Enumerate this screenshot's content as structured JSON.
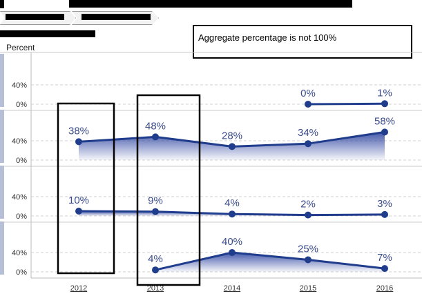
{
  "header": {
    "note_text": "Aggregate percentage is not 100%",
    "measure_label": "Percent"
  },
  "colors": {
    "line": "#1f3d8c",
    "area_top": "#3a4fa6",
    "grid": "#d0d0d0",
    "highlight_box": "#000000"
  },
  "chart_data": {
    "type": "area",
    "x": [
      "2012",
      "2013",
      "2014",
      "2015",
      "2016"
    ],
    "y_ticks": [
      "0%",
      "40%"
    ],
    "ylim": [
      0,
      60
    ],
    "grid": "horizontal-dashed",
    "panels": [
      {
        "values": [
          null,
          null,
          null,
          0,
          1
        ],
        "labels": [
          "",
          "",
          "",
          "0%",
          "1%"
        ]
      },
      {
        "values": [
          38,
          48,
          28,
          34,
          58
        ],
        "labels": [
          "38%",
          "48%",
          "28%",
          "34%",
          "58%"
        ]
      },
      {
        "values": [
          10,
          9,
          4,
          2,
          3
        ],
        "labels": [
          "10%",
          "9%",
          "4%",
          "2%",
          "3%"
        ]
      },
      {
        "values": [
          null,
          4,
          40,
          25,
          7
        ],
        "labels": [
          "",
          "4%",
          "40%",
          "25%",
          "7%"
        ]
      }
    ],
    "highlighted_years": [
      "2012",
      "2013"
    ]
  }
}
